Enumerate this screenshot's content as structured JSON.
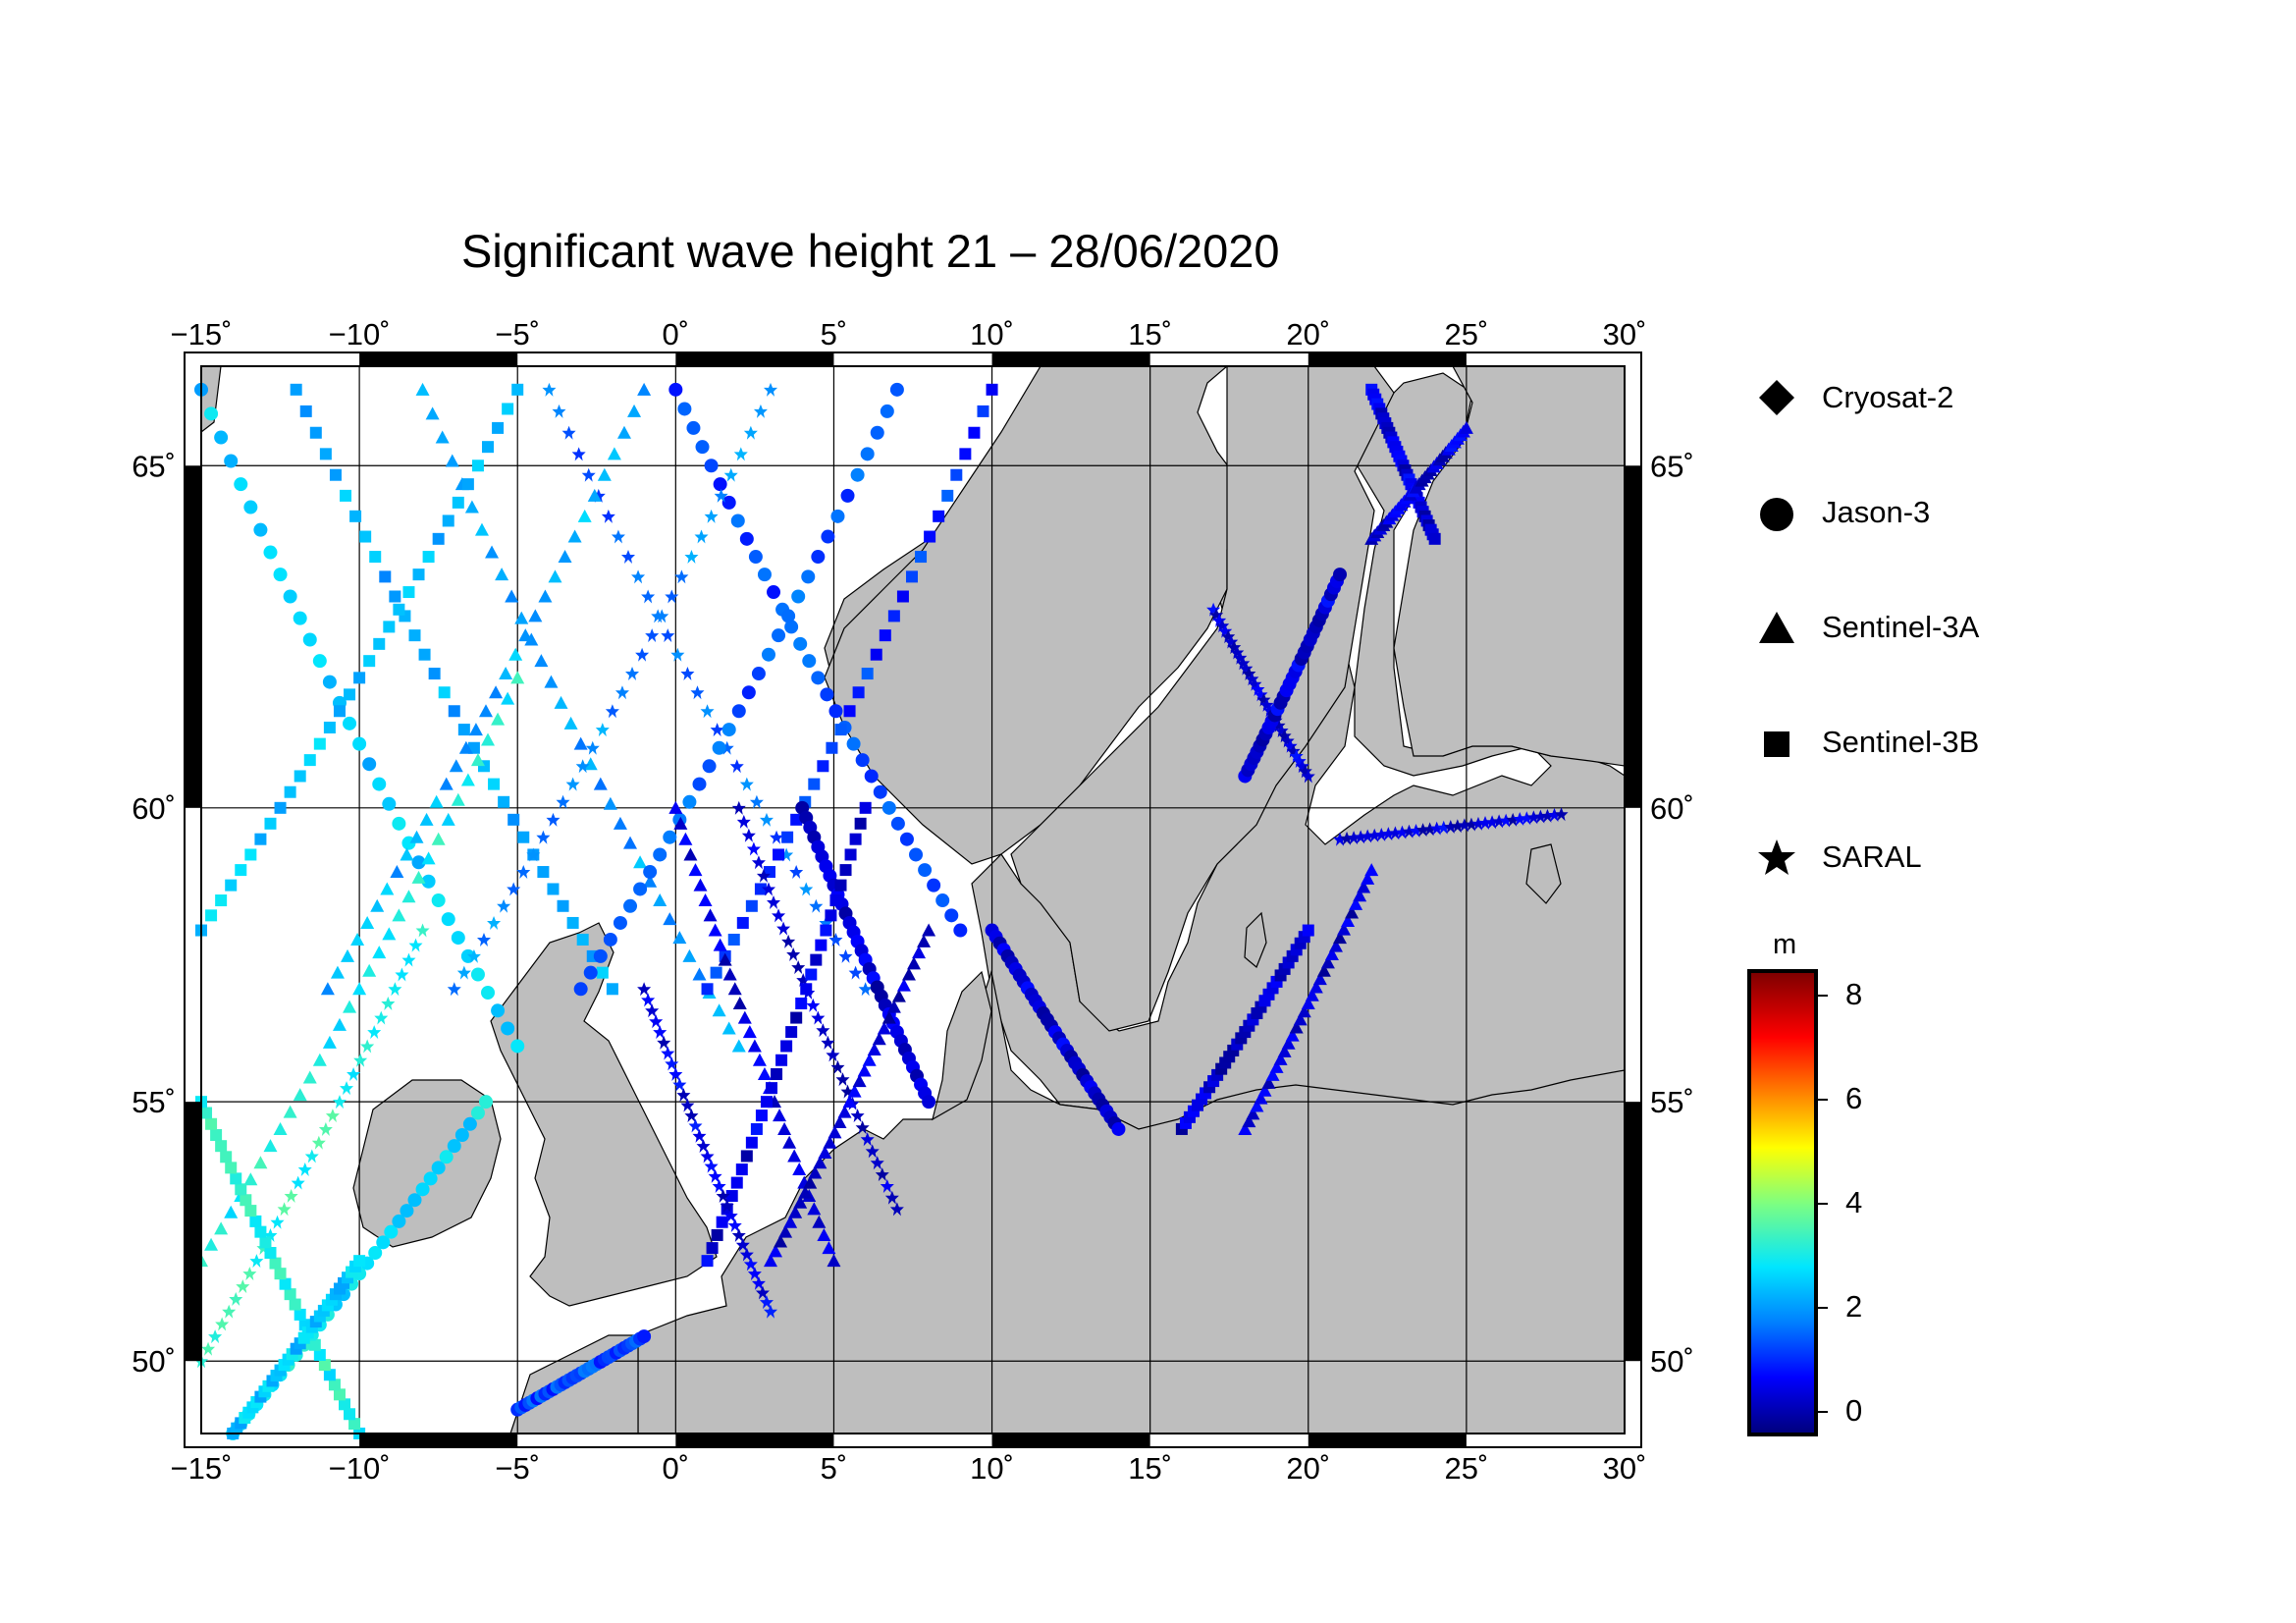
{
  "title": "Significant wave height 21 – 28/06/2020",
  "map": {
    "lon_ticks": [
      "−15˚",
      "−10˚",
      "−5˚",
      "0˚",
      "5˚",
      "10˚",
      "15˚",
      "20˚",
      "25˚",
      "30˚"
    ],
    "lat_ticks": [
      "65˚",
      "60˚",
      "55˚",
      "50˚"
    ],
    "lon_range": [
      -15,
      30
    ],
    "lat_range": [
      48.5,
      66.3
    ],
    "land_color": "#bebebe",
    "sea_color": "#ffffff"
  },
  "legend": {
    "items": [
      {
        "label": "Cryosat-2",
        "icon": "diamond-icon"
      },
      {
        "label": "Jason-3",
        "icon": "circle-icon"
      },
      {
        "label": "Sentinel-3A",
        "icon": "triangle-icon"
      },
      {
        "label": "Sentinel-3B",
        "icon": "square-icon"
      },
      {
        "label": "SARAL",
        "icon": "star-icon"
      }
    ]
  },
  "colorbar": {
    "unit": "m",
    "ticks": [
      "8",
      "6",
      "4",
      "2",
      "0"
    ],
    "range": [
      -0.5,
      8.5
    ]
  }
}
